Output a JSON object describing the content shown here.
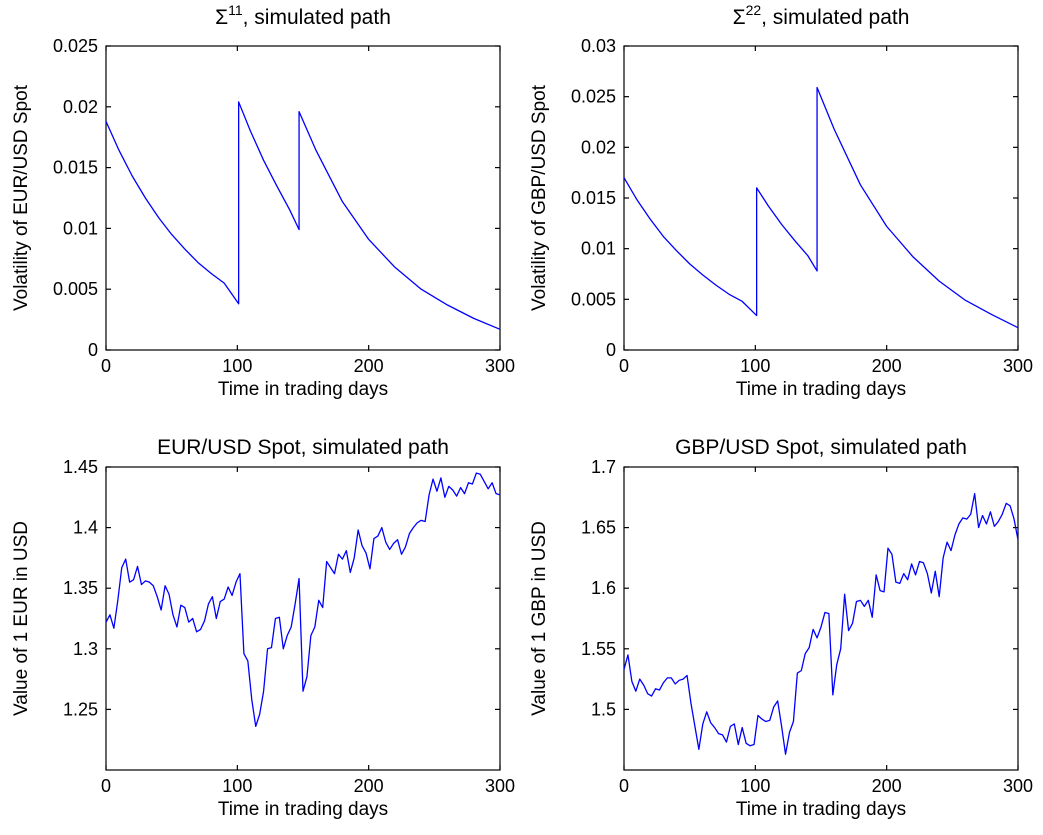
{
  "chart_data": [
    {
      "type": "line",
      "title_symbol": "Σ",
      "title_superscript": "11",
      "title_rest": ", simulated path",
      "xlabel": "Time in trading days",
      "ylabel": "Volatility of EUR/USD Spot",
      "xlim": [
        0,
        300
      ],
      "ylim": [
        0,
        0.025
      ],
      "xticks": [
        0,
        100,
        200,
        300
      ],
      "xtick_labels": [
        "0",
        "100",
        "200",
        "300"
      ],
      "yticks": [
        0,
        0.005,
        0.01,
        0.015,
        0.02,
        0.025
      ],
      "ytick_labels": [
        "0",
        "0.005",
        "0.01",
        "0.015",
        "0.02",
        "0.025"
      ],
      "color": "#0000ff",
      "series": [
        {
          "x": [
            0,
            10,
            20,
            30,
            40,
            50,
            60,
            70,
            80,
            90,
            101,
            101,
            110,
            120,
            130,
            140,
            147,
            147,
            160,
            180,
            200,
            220,
            240,
            260,
            280,
            300
          ],
          "y": [
            0.0188,
            0.0164,
            0.0143,
            0.0125,
            0.0109,
            0.0095,
            0.0083,
            0.0072,
            0.0063,
            0.0055,
            0.0038,
            0.0204,
            0.018,
            0.0156,
            0.0135,
            0.0115,
            0.0099,
            0.0196,
            0.0164,
            0.0122,
            0.0091,
            0.0068,
            0.005,
            0.0037,
            0.0026,
            0.0017
          ]
        }
      ]
    },
    {
      "type": "line",
      "title_symbol": "Σ",
      "title_superscript": "22",
      "title_rest": ", simulated path",
      "xlabel": "Time in trading days",
      "ylabel": "Volatility of GBP/USD Spot",
      "xlim": [
        0,
        300
      ],
      "ylim": [
        0,
        0.03
      ],
      "xticks": [
        0,
        100,
        200,
        300
      ],
      "xtick_labels": [
        "0",
        "100",
        "200",
        "300"
      ],
      "yticks": [
        0,
        0.005,
        0.01,
        0.015,
        0.02,
        0.025,
        0.03
      ],
      "ytick_labels": [
        "0",
        "0.005",
        "0.01",
        "0.015",
        "0.02",
        "0.025",
        "0.03"
      ],
      "color": "#0000ff",
      "series": [
        {
          "x": [
            0,
            10,
            20,
            30,
            40,
            50,
            60,
            70,
            80,
            90,
            101,
            101,
            110,
            120,
            130,
            140,
            147,
            147,
            160,
            180,
            200,
            220,
            240,
            260,
            280,
            300
          ],
          "y": [
            0.017,
            0.0148,
            0.0129,
            0.0112,
            0.0098,
            0.0085,
            0.0074,
            0.0064,
            0.0055,
            0.0048,
            0.0034,
            0.016,
            0.0142,
            0.0124,
            0.0108,
            0.0093,
            0.0078,
            0.0259,
            0.0218,
            0.0163,
            0.0122,
            0.0092,
            0.0068,
            0.0049,
            0.0035,
            0.0022
          ]
        }
      ]
    },
    {
      "type": "line",
      "title": "EUR/USD Spot, simulated path",
      "xlabel": "Time in trading days",
      "ylabel": "Value of 1 EUR in USD",
      "xlim": [
        0,
        300
      ],
      "ylim": [
        1.2,
        1.45
      ],
      "xticks": [
        0,
        100,
        200,
        300
      ],
      "xtick_labels": [
        "0",
        "100",
        "200",
        "300"
      ],
      "yticks": [
        1.25,
        1.3,
        1.35,
        1.4,
        1.45
      ],
      "ytick_labels": [
        "1.25",
        "1.3",
        "1.35",
        "1.4",
        "1.45"
      ],
      "color": "#0000ff",
      "series": [
        {
          "x": [
            0,
            3,
            6,
            9,
            12,
            15,
            18,
            21,
            24,
            27,
            30,
            33,
            36,
            39,
            42,
            45,
            48,
            51,
            54,
            57,
            60,
            63,
            66,
            69,
            72,
            75,
            78,
            81,
            84,
            87,
            90,
            93,
            96,
            99,
            102,
            105,
            108,
            111,
            114,
            117,
            120,
            123,
            126,
            129,
            132,
            135,
            138,
            141,
            144,
            147,
            150,
            153,
            156,
            159,
            162,
            165,
            168,
            171,
            174,
            177,
            180,
            183,
            186,
            189,
            192,
            195,
            198,
            201,
            204,
            207,
            210,
            213,
            216,
            219,
            222,
            225,
            228,
            231,
            234,
            237,
            240,
            243,
            246,
            249,
            252,
            255,
            258,
            261,
            264,
            267,
            270,
            273,
            276,
            279,
            282,
            285,
            288,
            291,
            294,
            297,
            300
          ],
          "y": [
            1.322,
            1.328,
            1.317,
            1.34,
            1.367,
            1.374,
            1.355,
            1.357,
            1.368,
            1.353,
            1.356,
            1.355,
            1.352,
            1.343,
            1.332,
            1.352,
            1.345,
            1.328,
            1.318,
            1.336,
            1.334,
            1.322,
            1.325,
            1.314,
            1.316,
            1.323,
            1.337,
            1.343,
            1.325,
            1.339,
            1.341,
            1.351,
            1.344,
            1.355,
            1.362,
            1.296,
            1.29,
            1.258,
            1.236,
            1.246,
            1.265,
            1.3,
            1.301,
            1.325,
            1.326,
            1.3,
            1.311,
            1.318,
            1.337,
            1.358,
            1.265,
            1.277,
            1.311,
            1.318,
            1.34,
            1.334,
            1.372,
            1.367,
            1.362,
            1.378,
            1.374,
            1.381,
            1.363,
            1.375,
            1.398,
            1.385,
            1.379,
            1.366,
            1.391,
            1.393,
            1.4,
            1.388,
            1.382,
            1.387,
            1.39,
            1.378,
            1.384,
            1.395,
            1.4,
            1.404,
            1.406,
            1.405,
            1.427,
            1.44,
            1.43,
            1.441,
            1.425,
            1.434,
            1.431,
            1.426,
            1.433,
            1.428,
            1.437,
            1.436,
            1.445,
            1.444,
            1.438,
            1.432,
            1.437,
            1.428,
            1.427
          ]
        }
      ]
    },
    {
      "type": "line",
      "title": "GBP/USD Spot, simulated path",
      "xlabel": "Time in trading days",
      "ylabel": "Value of 1 GBP in USD",
      "xlim": [
        0,
        300
      ],
      "ylim": [
        1.45,
        1.7
      ],
      "xticks": [
        0,
        100,
        200,
        300
      ],
      "xtick_labels": [
        "0",
        "100",
        "200",
        "300"
      ],
      "yticks": [
        1.5,
        1.55,
        1.6,
        1.65,
        1.7
      ],
      "ytick_labels": [
        "1.5",
        "1.55",
        "1.6",
        "1.65",
        "1.7"
      ],
      "color": "#0000ff",
      "series": [
        {
          "x": [
            0,
            3,
            6,
            9,
            12,
            15,
            18,
            21,
            24,
            27,
            30,
            33,
            36,
            39,
            42,
            45,
            48,
            51,
            54,
            57,
            60,
            63,
            66,
            69,
            72,
            75,
            78,
            81,
            84,
            87,
            90,
            93,
            96,
            99,
            102,
            105,
            108,
            111,
            114,
            117,
            120,
            123,
            126,
            129,
            132,
            135,
            138,
            141,
            144,
            147,
            150,
            153,
            156,
            159,
            162,
            165,
            168,
            171,
            174,
            177,
            180,
            183,
            186,
            189,
            192,
            195,
            198,
            201,
            204,
            207,
            210,
            213,
            216,
            219,
            222,
            225,
            228,
            231,
            234,
            237,
            240,
            243,
            246,
            249,
            252,
            255,
            258,
            261,
            264,
            267,
            270,
            273,
            276,
            279,
            282,
            285,
            288,
            291,
            294,
            297,
            300
          ],
          "y": [
            1.533,
            1.545,
            1.523,
            1.515,
            1.525,
            1.52,
            1.513,
            1.511,
            1.517,
            1.516,
            1.522,
            1.526,
            1.526,
            1.521,
            1.524,
            1.525,
            1.528,
            1.505,
            1.486,
            1.467,
            1.488,
            1.498,
            1.489,
            1.485,
            1.48,
            1.479,
            1.473,
            1.486,
            1.488,
            1.471,
            1.485,
            1.472,
            1.47,
            1.471,
            1.495,
            1.492,
            1.49,
            1.491,
            1.502,
            1.507,
            1.486,
            1.463,
            1.481,
            1.49,
            1.53,
            1.532,
            1.546,
            1.551,
            1.566,
            1.559,
            1.568,
            1.58,
            1.579,
            1.512,
            1.537,
            1.55,
            1.595,
            1.565,
            1.571,
            1.589,
            1.59,
            1.585,
            1.59,
            1.576,
            1.611,
            1.598,
            1.597,
            1.633,
            1.628,
            1.605,
            1.604,
            1.612,
            1.607,
            1.62,
            1.611,
            1.622,
            1.621,
            1.612,
            1.596,
            1.614,
            1.593,
            1.625,
            1.638,
            1.631,
            1.644,
            1.653,
            1.658,
            1.657,
            1.661,
            1.678,
            1.65,
            1.66,
            1.653,
            1.663,
            1.651,
            1.655,
            1.661,
            1.67,
            1.668,
            1.657,
            1.64
          ]
        }
      ]
    }
  ]
}
